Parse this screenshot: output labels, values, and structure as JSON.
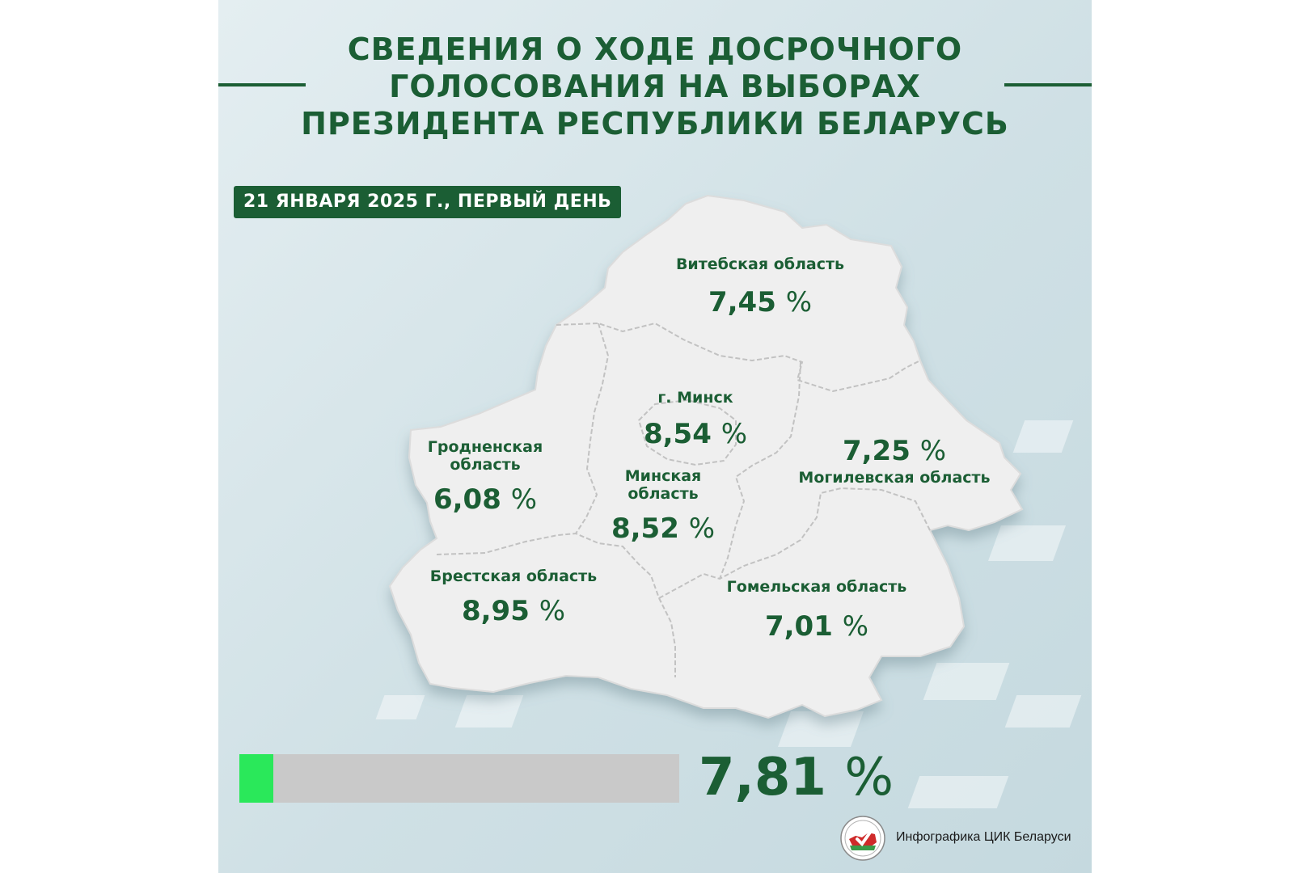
{
  "title": {
    "line1": "СВЕДЕНИЯ О ХОДЕ ДОСРОЧНОГО",
    "line2": "ГОЛОСОВАНИЯ НА ВЫБОРАХ",
    "line3": "ПРЕЗИДЕНТА РЕСПУБЛИКИ БЕЛАРУСЬ"
  },
  "date_label": "21 ЯНВАРЯ 2025 Г., ПЕРВЫЙ ДЕНЬ",
  "percent_sign": "%",
  "regions": {
    "vitebsk": {
      "name": "Витебская область",
      "value": "7,45"
    },
    "minsk_city": {
      "name": "г. Минск",
      "value": "8,54"
    },
    "grodno": {
      "name_line1": "Гродненская",
      "name_line2": "область",
      "value": "6,08"
    },
    "minsk_region": {
      "name_line1": "Минская",
      "name_line2": "область",
      "value": "8,52"
    },
    "mogilev": {
      "name": "Могилевская область",
      "value": "7,25"
    },
    "brest": {
      "name": "Брестская область",
      "value": "8,95"
    },
    "gomel": {
      "name": "Гомельская область",
      "value": "7,01"
    }
  },
  "total": {
    "value": "7,81",
    "fraction": 0.0781
  },
  "credit": "Инфографика ЦИК Беларуси",
  "colors": {
    "accent": "#1b5e34",
    "bar_fill": "#2ae85a",
    "bar_track": "#c9c9c9",
    "map_fill": "#efefef"
  }
}
